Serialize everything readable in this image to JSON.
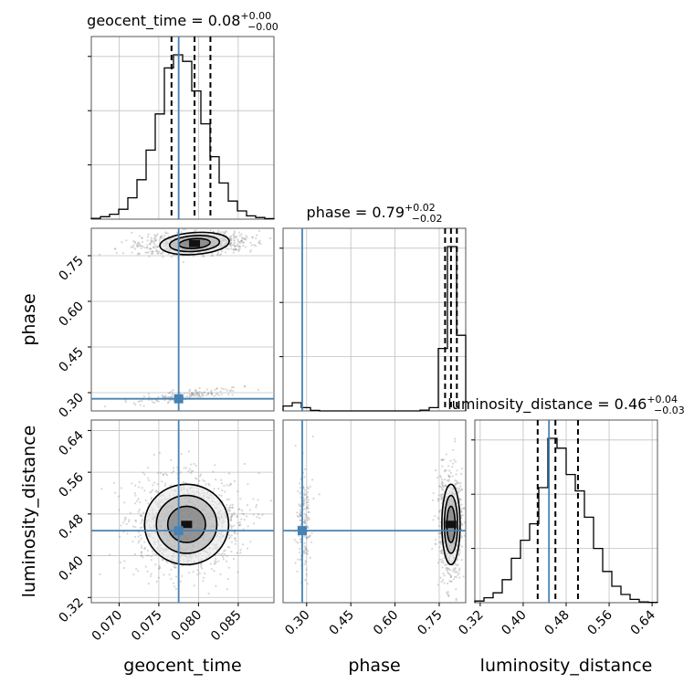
{
  "chart_data": [
    {
      "type": "histogram",
      "panel": "geocent_time",
      "title_prefix": "geocent_time = 0.08",
      "title_sup": "+0.00",
      "title_sub": "−0.00",
      "x_range": [
        0.0665,
        0.0895
      ],
      "quantiles": [
        0.0766,
        0.0795,
        0.0815
      ],
      "truth": 0.0775,
      "bin_edges": [
        0.0665,
        0.06765,
        0.0688,
        0.06995,
        0.0711,
        0.07225,
        0.0734,
        0.07455,
        0.0757,
        0.07685,
        0.078,
        0.07915,
        0.0803,
        0.08145,
        0.0826,
        0.08375,
        0.0849,
        0.08605,
        0.0872,
        0.08835,
        0.0895
      ],
      "counts": [
        0.5,
        1.5,
        3,
        6,
        13,
        24,
        42,
        64,
        92,
        100,
        96,
        78,
        58,
        38,
        22,
        11,
        5,
        2,
        1,
        0.3
      ]
    },
    {
      "type": "scatter-contour",
      "panel": "phase vs geocent_time",
      "x": "geocent_time",
      "y": "phase",
      "x_range": [
        0.0665,
        0.0895
      ],
      "y_range": [
        0.24,
        0.84
      ],
      "y_ticks": [
        "0.30",
        "0.45",
        "0.60",
        "0.75"
      ],
      "y_tick_values": [
        0.3,
        0.45,
        0.6,
        0.75
      ],
      "ylabel": "phase",
      "truth": [
        0.0775,
        0.28
      ]
    },
    {
      "type": "histogram",
      "panel": "phase",
      "title_prefix": "phase = 0.79",
      "title_sup": "+0.02",
      "title_sub": "−0.02",
      "x_range": [
        0.22,
        0.84
      ],
      "quantiles": [
        0.77,
        0.79,
        0.81
      ],
      "truth": 0.285,
      "bin_edges": [
        0.22,
        0.251,
        0.282,
        0.313,
        0.344,
        0.375,
        0.406,
        0.437,
        0.468,
        0.499,
        0.53,
        0.561,
        0.592,
        0.623,
        0.654,
        0.685,
        0.716,
        0.747,
        0.778,
        0.809,
        0.84
      ],
      "counts": [
        3,
        5,
        2,
        0.3,
        0,
        0,
        0,
        0,
        0,
        0,
        0,
        0,
        0,
        0,
        0,
        0.5,
        2,
        38,
        100,
        46
      ]
    },
    {
      "type": "scatter-contour",
      "panel": "luminosity_distance vs geocent_time",
      "x": "geocent_time",
      "y": "luminosity_distance",
      "x_range": [
        0.0665,
        0.0895
      ],
      "y_range": [
        0.31,
        0.66
      ],
      "x_ticks": [
        "0.070",
        "0.075",
        "0.080",
        "0.085"
      ],
      "x_tick_values": [
        0.07,
        0.075,
        0.08,
        0.085
      ],
      "y_ticks": [
        "0.32",
        "0.40",
        "0.48",
        "0.56",
        "0.64"
      ],
      "y_tick_values": [
        0.32,
        0.4,
        0.48,
        0.56,
        0.64
      ],
      "xlabel": "geocent_time",
      "ylabel": "luminosity_distance",
      "truth": [
        0.0775,
        0.448
      ]
    },
    {
      "type": "scatter-contour",
      "panel": "luminosity_distance vs phase",
      "x": "phase",
      "y": "luminosity_distance",
      "x_range": [
        0.22,
        0.84
      ],
      "y_range": [
        0.31,
        0.66
      ],
      "x_ticks": [
        "0.30",
        "0.45",
        "0.60",
        "0.75"
      ],
      "x_tick_values": [
        0.3,
        0.45,
        0.6,
        0.75
      ],
      "xlabel": "phase",
      "truth": [
        0.285,
        0.448
      ]
    },
    {
      "type": "histogram",
      "panel": "luminosity_distance",
      "title_prefix": "luminosity_distance = 0.46",
      "title_sup": "+0.04",
      "title_sub": "−0.03",
      "x_range": [
        0.31,
        0.65
      ],
      "quantiles": [
        0.427,
        0.46,
        0.502
      ],
      "truth": 0.448,
      "bin_edges": [
        0.31,
        0.327,
        0.344,
        0.361,
        0.378,
        0.395,
        0.412,
        0.429,
        0.446,
        0.463,
        0.48,
        0.497,
        0.514,
        0.531,
        0.548,
        0.565,
        0.582,
        0.599,
        0.616,
        0.633,
        0.65
      ],
      "counts": [
        1,
        3,
        6,
        14,
        27,
        38,
        48,
        70,
        100,
        94,
        78,
        68,
        52,
        33,
        19,
        10,
        5,
        2,
        0.5,
        0.2
      ],
      "x_ticks": [
        "0.32",
        "0.40",
        "0.48",
        "0.56",
        "0.64"
      ],
      "x_tick_values": [
        0.32,
        0.4,
        0.48,
        0.56,
        0.64
      ],
      "xlabel": "luminosity_distance"
    }
  ],
  "colors": {
    "truth": "#4682b4",
    "hist": "#000000",
    "grid": "#c0c0c0",
    "scatter": "#8c8c8c"
  }
}
